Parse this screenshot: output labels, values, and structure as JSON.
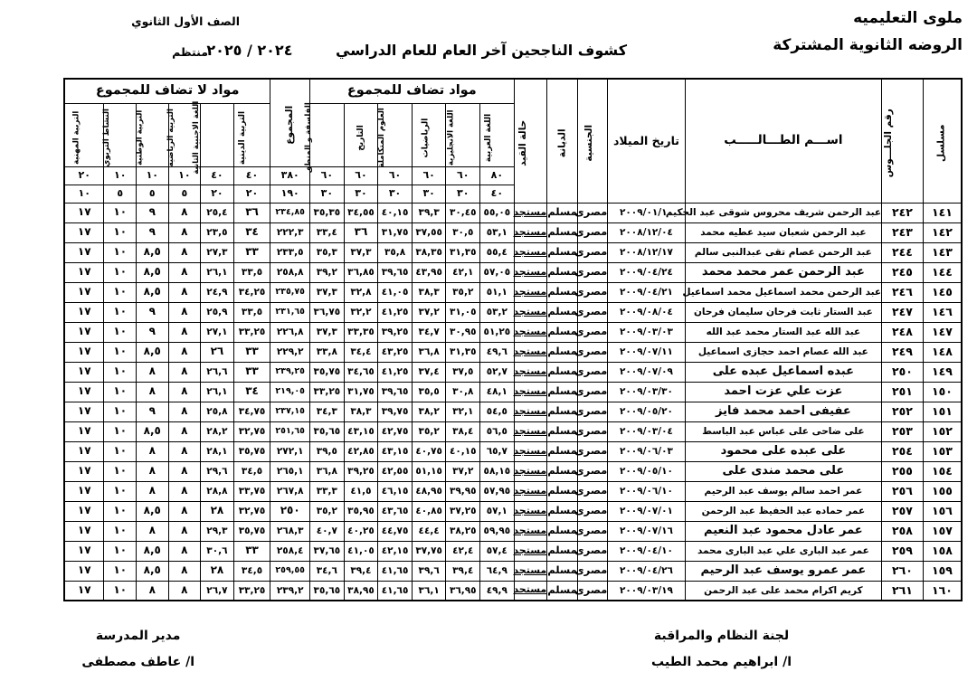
{
  "page": {
    "school_zone": "ملوى التعليميه",
    "school_name": "الروضه الثانوية المشتركة",
    "grade": "الصف الأول الثانوي",
    "enrollment_type": "منتظم",
    "sheet_title": "كشوف الناجحين آخر العام للعام الدراسي",
    "academic_year": "٢٠٢٤ / ٢٠٢٥"
  },
  "table": {
    "group_headers": {
      "added": "مواد تضاف للمجموع",
      "not_added": "مواد لا تضاف للمجموع"
    },
    "columns": {
      "serial": "مسلسل",
      "seat": "رقم الجلـــوس",
      "name": "اســـم الطـــالـــــب",
      "dob": "تاريخ الميلاد",
      "nationality": "الجنسية",
      "religion": "الديانة",
      "status": "حالة القيد",
      "arabic": "اللغة العربية",
      "english": "اللغة الانجليزية",
      "math": "الرياضيات",
      "science": "العلوم المتكاملة",
      "history": "التاريخ",
      "philosophy": "الفلسفة و المنطق",
      "total": "المجموع",
      "religious": "التربية الدينية",
      "second_lang": "اللغة الاجنبية الثانية",
      "pe": "التربية الرياضية",
      "national": "التربية الوطنية",
      "activity": "النشاط التربوي",
      "vocational": "التربية المهنية"
    },
    "full_marks": [
      "٨٠",
      "٦٠",
      "٦٠",
      "٦٠",
      "٦٠",
      "٦٠",
      "٣٨٠",
      "٤٠",
      "٤٠",
      "١٠",
      "١٠",
      "١٠",
      "٢٠"
    ],
    "half_marks": [
      "٤٠",
      "٣٠",
      "٣٠",
      "٣٠",
      "٣٠",
      "٣٠",
      "١٩٠",
      "٢٠",
      "٢٠",
      "٥",
      "٥",
      "٥",
      "١٠"
    ],
    "rows": [
      [
        "١٤١",
        "٢٤٢",
        "عبد الرحمن شريف محروس شوقى عبد الحكيم",
        "٢٠٠٩/٠١/١٠",
        "مصرى",
        "مسلم",
        "مستجد",
        "٥٥,٠٥",
        "٣٠,٤٥",
        "٣٩,٣",
        "٤٠,١٥",
        "٣٤,٥٥",
        "٣٥,٣٥",
        "٢٣٤,٨٥",
        "٣٦",
        "٢٥,٤",
        "٨",
        "٩",
        "١٠",
        "١٧"
      ],
      [
        "١٤٢",
        "٢٤٣",
        "عبد الرحمن شعبان سيد عطيه محمد",
        "٢٠٠٨/١٢/٠٤",
        "مصرى",
        "مسلم",
        "مستجد",
        "٥٣,١",
        "٣٠,٥",
        "٣٧,٥٥",
        "٣١,٧٥",
        "٣٦",
        "٣٣,٤",
        "٢٢٢,٣",
        "٣٤",
        "٢٣,٥",
        "٨",
        "٩",
        "١٠",
        "١٧"
      ],
      [
        "١٤٣",
        "٢٤٤",
        "عبد الرحمن عصام تقى عبدالنبى سالم",
        "٢٠٠٨/١٢/١٧",
        "مصرى",
        "مسلم",
        "مستجد",
        "٥٥,٤",
        "٣١,٣٥",
        "٣٨,٣٥",
        "٣٥,٨",
        "٣٧,٣",
        "٣٥,٣",
        "٢٣٣,٥",
        "٣٣",
        "٢٧,٣",
        "٨",
        "٨,٥",
        "١٠",
        "١٧"
      ],
      [
        "١٤٤",
        "٢٤٥",
        "عبد الرحمن عمر محمد محمد",
        "٢٠٠٩/٠٤/٢٤",
        "مصرى",
        "مسلم",
        "مستجد",
        "٥٧,٠٥",
        "٤٢,١",
        "٤٣,٩٥",
        "٣٩,٦٥",
        "٣٦,٨٥",
        "٣٩,٢",
        "٢٥٨,٨",
        "٣٣,٥",
        "٢٦,١",
        "٨",
        "٨,٥",
        "١٠",
        "١٧"
      ],
      [
        "١٤٥",
        "٢٤٦",
        "عبد الرحمن محمد اسماعيل محمد اسماعيل",
        "٢٠٠٩/٠٤/٢١",
        "مصرى",
        "مسلم",
        "مستجد",
        "٥١,١",
        "٣٥,٢",
        "٣٨,٣",
        "٤١,٠٥",
        "٣٢,٨",
        "٣٧,٣",
        "٢٣٥,٧٥",
        "٣٤,٢٥",
        "٢٤,٩",
        "٨",
        "٨,٥",
        "١٠",
        "١٧"
      ],
      [
        "١٤٦",
        "٢٤٧",
        "عبد الستار ثابت فرحان سليمان فرحان",
        "٢٠٠٩/٠٨/٠٤",
        "مصرى",
        "مسلم",
        "مستجد",
        "٥٣,٢",
        "٣١,٠٥",
        "٣٧,٢",
        "٤١,٢٥",
        "٣٢,٢",
        "٣٦,٧٥",
        "٢٣١,٦٥",
        "٣٣,٥",
        "٢٥,٩",
        "٨",
        "٩",
        "١٠",
        "١٧"
      ],
      [
        "١٤٧",
        "٢٤٨",
        "عبد الله عبد الستار محمد عبد الله",
        "٢٠٠٩/٠٣/٠٣",
        "مصرى",
        "مسلم",
        "مستجد",
        "٥١,٢٥",
        "٣٠,٩٥",
        "٣٤,٧",
        "٣٩,٢٥",
        "٣٣,٣٥",
        "٣٧,٣",
        "٢٢٦,٨",
        "٣٣,٢٥",
        "٢٧,١",
        "٨",
        "٩",
        "١٠",
        "١٧"
      ],
      [
        "١٤٨",
        "٢٤٩",
        "عبد الله عصام احمد حجازى اسماعيل",
        "٢٠٠٩/٠٧/١١",
        "مصرى",
        "مسلم",
        "مستجد",
        "٤٩,٦",
        "٣١,٣٥",
        "٣٦,٨",
        "٤٣,٢٥",
        "٣٤,٤",
        "٣٣,٨",
        "٢٢٩,٢",
        "٣٣",
        "٢٦",
        "٨",
        "٨,٥",
        "١٠",
        "١٧"
      ],
      [
        "١٤٩",
        "٢٥٠",
        "عبده اسماعيل عبده على",
        "٢٠٠٩/٠٧/٠٩",
        "مصرى",
        "مسلم",
        "مستجد",
        "٥٢,٧",
        "٣٧,٥",
        "٣٧,٤",
        "٤١,٢٥",
        "٣٤,٦٥",
        "٣٥,٧٥",
        "٢٣٩,٢٥",
        "٣٣",
        "٢٦,٦",
        "٨",
        "٨",
        "١٠",
        "١٧"
      ],
      [
        "١٥٠",
        "٢٥١",
        "عزت علي عزت احمد",
        "٢٠٠٩/٠٣/٣٠",
        "مصرى",
        "مسلم",
        "مستجد",
        "٤٨,١",
        "٣٠,٨",
        "٣٥,٥",
        "٣٩,٦٥",
        "٣١,٧٥",
        "٣٣,٢٥",
        "٢١٩,٠٥",
        "٣٤",
        "٢٦,١",
        "٨",
        "٨",
        "١٠",
        "١٧"
      ],
      [
        "١٥١",
        "٢٥٢",
        "عفيفى احمد محمد فايز",
        "٢٠٠٩/٠٥/٢٠",
        "مصرى",
        "مسلم",
        "مستجد",
        "٥٤,٥",
        "٣٢,١",
        "٣٨,٢",
        "٣٩,٧٥",
        "٣٨,٣",
        "٣٤,٣",
        "٢٣٧,١٥",
        "٣٤,٧٥",
        "٢٥,٨",
        "٨",
        "٩",
        "١٠",
        "١٧"
      ],
      [
        "١٥٢",
        "٢٥٣",
        "على ضاحى على عباس عبد الباسط",
        "٢٠٠٩/٠٣/٠٤",
        "مصرى",
        "مسلم",
        "مستجد",
        "٥٦,٥",
        "٣٨,٤",
        "٣٥,٢",
        "٤٢,٧٥",
        "٤٣,١٥",
        "٣٥,٦٥",
        "٢٥١,٦٥",
        "٣٢,٧٥",
        "٢٨,٢",
        "٨",
        "٨,٥",
        "١٠",
        "١٧"
      ],
      [
        "١٥٣",
        "٢٥٤",
        "على عبده على محمود",
        "٢٠٠٩/٠٦/٠٣",
        "مصرى",
        "مسلم",
        "مستجد",
        "٦٥,٧",
        "٤٠,١٥",
        "٤٠,٧٥",
        "٤٣,١٥",
        "٤٢,٨٥",
        "٣٩,٥",
        "٢٧٢,١",
        "٣٥,٧٥",
        "٢٨,١",
        "٨",
        "٨",
        "١٠",
        "١٧"
      ],
      [
        "١٥٤",
        "٢٥٥",
        "على محمد مندى على",
        "٢٠٠٩/٠٥/١٠",
        "مصرى",
        "مسلم",
        "مستجد",
        "٥٨,١٥",
        "٣٧,٢",
        "٥١,١٥",
        "٤٢,٥٥",
        "٣٩,٢٥",
        "٣٦,٨",
        "٢٦٥,١",
        "٣٤,٥",
        "٢٩,٦",
        "٨",
        "٨",
        "١٠",
        "١٧"
      ],
      [
        "١٥٥",
        "٢٥٦",
        "عمر احمد سالم يوسف عبد الرحيم",
        "٢٠٠٩/٠٦/١٠",
        "مصرى",
        "مسلم",
        "مستجد",
        "٥٧,٩٥",
        "٣٩,٩٥",
        "٤٨,٩٥",
        "٤٦,١٥",
        "٤١,٥",
        "٣٣,٣",
        "٢٦٧,٨",
        "٣٣,٧٥",
        "٢٨,٨",
        "٨",
        "٨",
        "١٠",
        "١٧"
      ],
      [
        "١٥٦",
        "٢٥٧",
        "عمر حماده عبد الحفيظ عبد الرحمن",
        "٢٠٠٩/٠٧/٠١",
        "مصرى",
        "مسلم",
        "مستجد",
        "٥٧,١",
        "٣٧,٢٥",
        "٤٠,٨٥",
        "٤٣,٦٥",
        "٣٥,٩٥",
        "٣٥,٢",
        "٢٥٠",
        "٣٢,٧٥",
        "٢٨",
        "٨",
        "٨,٥",
        "١٠",
        "١٧"
      ],
      [
        "١٥٧",
        "٢٥٨",
        "عمر عادل محمود عبد النعيم",
        "٢٠٠٩/٠٧/١٦",
        "مصرى",
        "مسلم",
        "مستجد",
        "٥٩,٩٥",
        "٣٨,٢٥",
        "٤٤,٤",
        "٤٤,٧٥",
        "٤٠,٢٥",
        "٤٠,٧",
        "٢٦٨,٣",
        "٣٥,٧٥",
        "٢٩,٣",
        "٨",
        "٨",
        "١٠",
        "١٧"
      ],
      [
        "١٥٨",
        "٢٥٩",
        "عمر عبد البارى علي عبد البارى محمد",
        "٢٠٠٩/٠٤/١٠",
        "مصرى",
        "مسلم",
        "مستجد",
        "٥٧,٤",
        "٤٢,٤",
        "٣٧,٧٥",
        "٤٢,١٥",
        "٤١,٠٥",
        "٣٧,٦٥",
        "٢٥٨,٤",
        "٣٣",
        "٣٠,٦",
        "٨",
        "٨,٥",
        "١٠",
        "١٧"
      ],
      [
        "١٥٩",
        "٢٦٠",
        "عمر عمرو يوسف عبد الرحيم",
        "٢٠٠٩/٠٤/٢٦",
        "مصرى",
        "مسلم",
        "مستجد",
        "٦٤,٩",
        "٣٩,٤",
        "٣٩,٦",
        "٤١,٦٥",
        "٣٩,٤",
        "٣٤,٦",
        "٢٥٩,٥٥",
        "٣٤,٥",
        "٢٨",
        "٨",
        "٨,٥",
        "١٠",
        "١٧"
      ],
      [
        "١٦٠",
        "٢٦١",
        "كريم اكرام محمد على عبد الرحمن",
        "٢٠٠٩/٠٣/١٩",
        "مصرى",
        "مسلم",
        "مستجد",
        "٤٩,٩",
        "٣٦,٩٥",
        "٣٦,١",
        "٤١,٦٥",
        "٣٨,٩٥",
        "٣٥,٦٥",
        "٢٣٩,٢",
        "٣٣,٢٥",
        "٢٦,٧",
        "٨",
        "٨",
        "١٠",
        "١٧"
      ]
    ]
  },
  "footer": {
    "committee_title": "لجنة النظام والمراقبة",
    "committee_name": "ا/ ابراهيم محمد الطيب",
    "principal_title": "مدير المدرسة",
    "principal_name": "ا/ عاطف مصطفى"
  }
}
